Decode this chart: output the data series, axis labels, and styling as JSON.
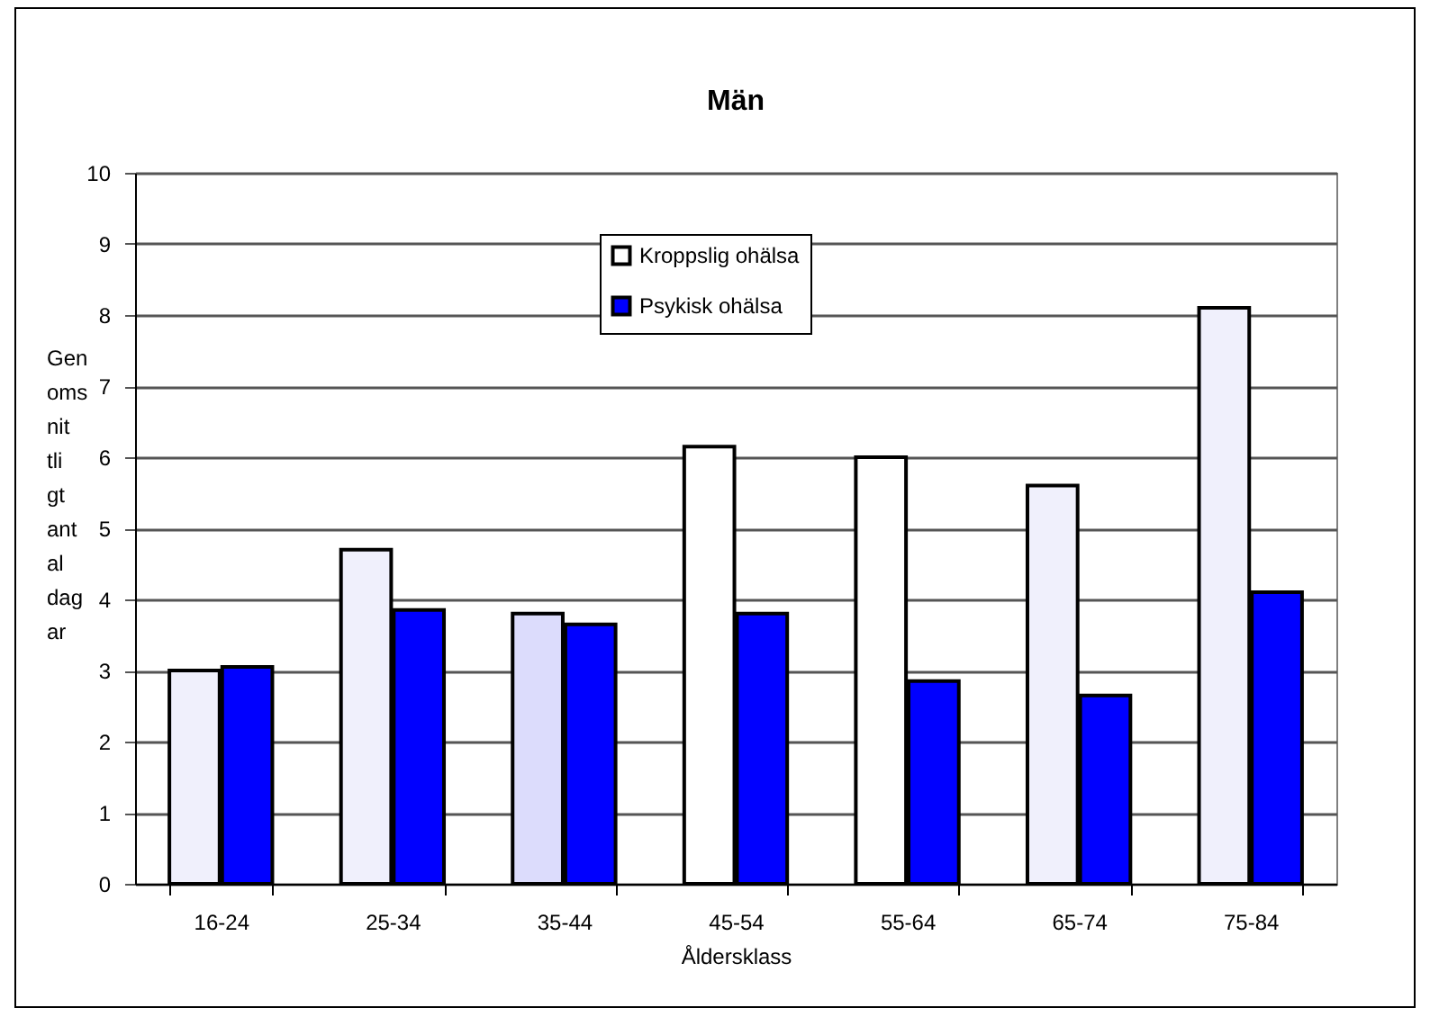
{
  "chart_data": {
    "type": "bar",
    "title": "Män",
    "xlabel": "Åldersklass",
    "ylabel": "Genomsnittligt antal dagar",
    "categories": [
      "16-24",
      "25-34",
      "35-44",
      "45-54",
      "55-64",
      "65-74",
      "75-84"
    ],
    "series": [
      {
        "name": "Kroppslig ohälsa",
        "color": "#ffffff",
        "colors": [
          "#f0f0fc",
          "#f0f0fc",
          "#dcdcfc",
          "#ffffff",
          "#ffffff",
          "#f0f0fc",
          "#f0f0fc"
        ],
        "values": [
          3.0,
          4.7,
          3.8,
          6.15,
          6.0,
          5.6,
          8.1
        ]
      },
      {
        "name": "Psykisk ohälsa",
        "color": "#0000ff",
        "values": [
          3.05,
          3.85,
          3.65,
          3.8,
          2.85,
          2.65,
          4.1
        ]
      }
    ],
    "ylim": [
      0,
      10
    ],
    "yticks": [
      0,
      1,
      2,
      3,
      4,
      5,
      6,
      7,
      8,
      9,
      10
    ],
    "grid": "y",
    "legend": "top"
  }
}
